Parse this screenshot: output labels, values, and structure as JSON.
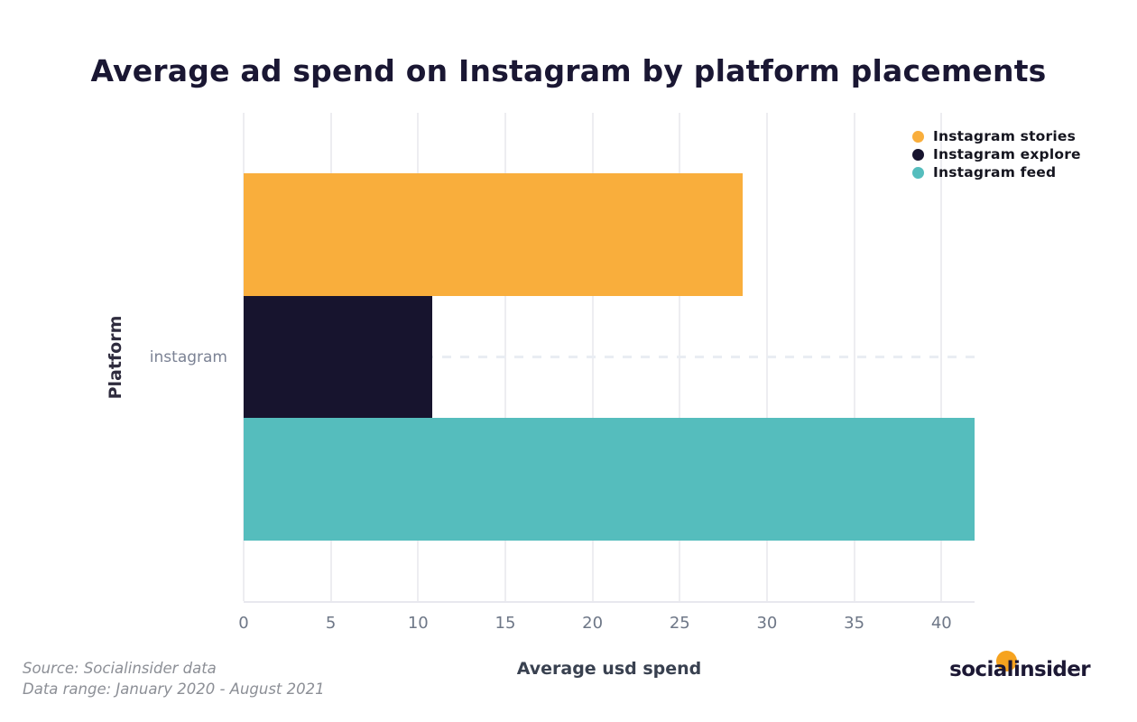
{
  "title": "Average ad spend on Instagram by platform placements",
  "chart_data": {
    "type": "bar",
    "orientation": "horizontal",
    "title": "Average ad spend on Instagram by platform placements",
    "categories": [
      "instagram"
    ],
    "series": [
      {
        "name": "Instagram stories",
        "color": "#f9ae3c",
        "values": [
          28.6
        ]
      },
      {
        "name": "Instagram explore",
        "color": "#17142e",
        "values": [
          10.8
        ]
      },
      {
        "name": "Instagram feed",
        "color": "#55bdbd",
        "values": [
          41.9
        ]
      }
    ],
    "xlabel": "Average usd spend",
    "ylabel": "Platform",
    "xlim": [
      0,
      41.9
    ],
    "xticks": [
      0,
      5,
      10,
      15,
      20,
      25,
      30,
      35,
      40
    ],
    "grid": true,
    "legend_position": "top-right"
  },
  "footer": {
    "source_line1": "Source: Socialinsider data",
    "source_line2": "Data range: January 2020 - August 2021",
    "logo_text": "socialinsider"
  },
  "colors": {
    "background": "#ffffff",
    "title_text": "#1a1733",
    "gridline": "#ededf1",
    "axis_line": "#e8e8ee",
    "dashed_line": "#e9edf3",
    "tick_label": "#6e7787",
    "category_label": "#7b8294",
    "x_axis_title": "#394150",
    "y_axis_title": "#2f2c3e",
    "legend_text": "#15151f",
    "source_text": "#8c8f96",
    "logo_text": "#1c1834",
    "logo_dot": "#f6a31f"
  }
}
